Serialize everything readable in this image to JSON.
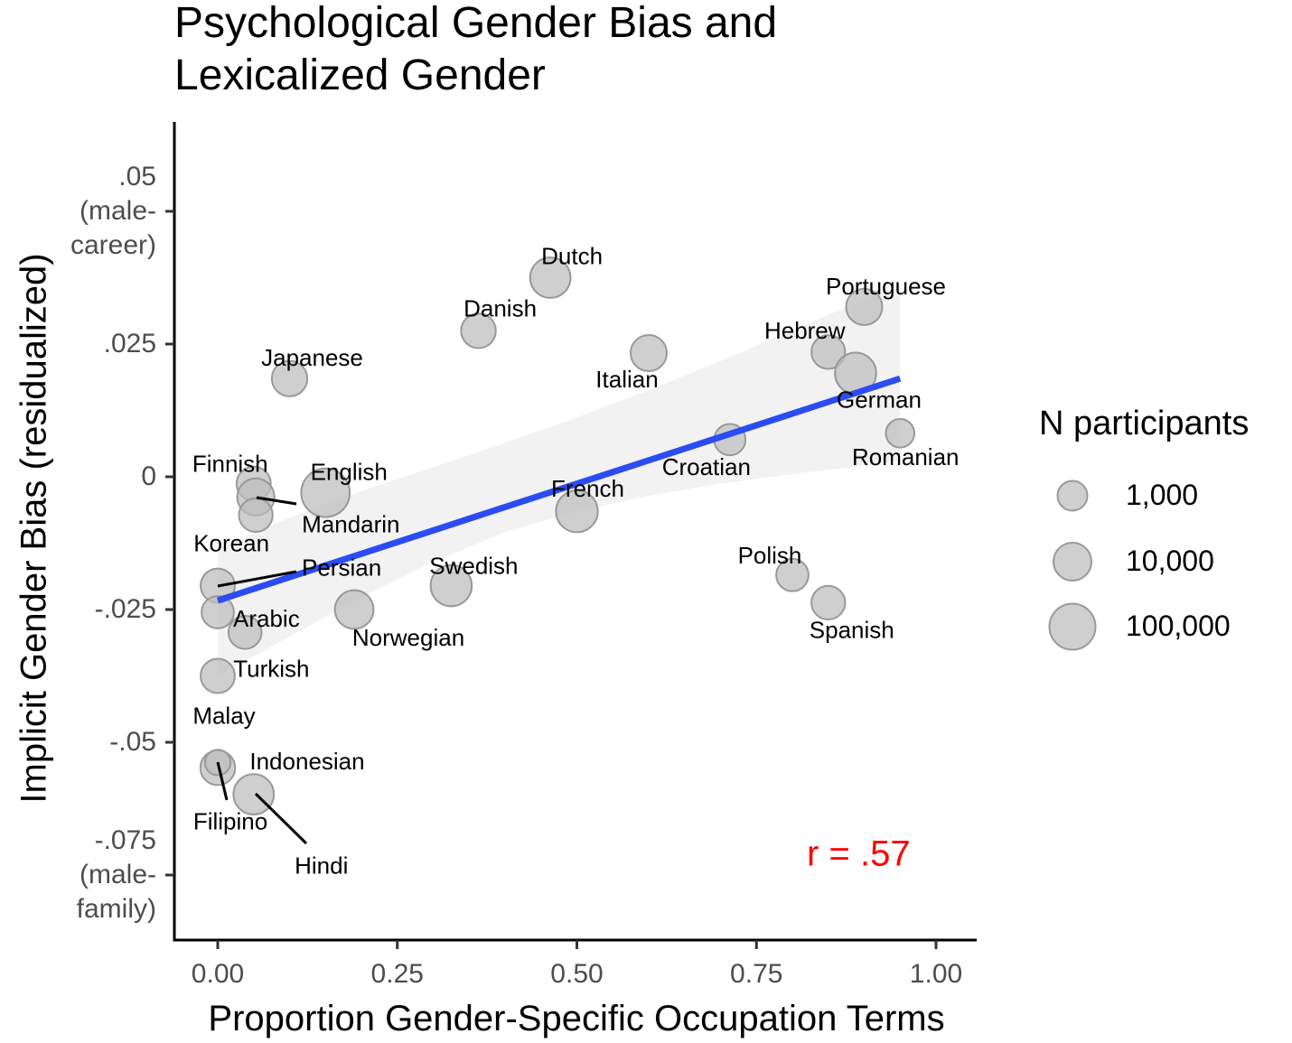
{
  "chart_data": {
    "type": "scatter",
    "title": "Psychological Gender Bias and Lexicalized Gender",
    "title_lines": [
      "Psychological Gender Bias and",
      "Lexicalized Gender"
    ],
    "xlabel": "Proportion Gender-Specific Occupation Terms",
    "ylabel": "Implicit Gender Bias (residualized)",
    "xlim": [
      -0.0125,
      1.0
    ],
    "ylim": [
      -0.0845,
      0.066
    ],
    "x_ticks": [
      {
        "value": 0.0,
        "label": "0.00"
      },
      {
        "value": 0.25,
        "label": "0.25"
      },
      {
        "value": 0.5,
        "label": "0.50"
      },
      {
        "value": 0.75,
        "label": "0.75"
      },
      {
        "value": 1.0,
        "label": "1.00"
      }
    ],
    "y_ticks": [
      {
        "value": 0.05,
        "label_lines": [
          ".05",
          "(male-",
          "career)"
        ]
      },
      {
        "value": 0.025,
        "label_lines": [
          ".025"
        ]
      },
      {
        "value": 0.0,
        "label_lines": [
          "0"
        ]
      },
      {
        "value": -0.025,
        "label_lines": [
          "-.025"
        ]
      },
      {
        "value": -0.05,
        "label_lines": [
          "-.05"
        ]
      },
      {
        "value": -0.075,
        "label_lines": [
          "-.075",
          "(male-",
          "family)"
        ]
      }
    ],
    "points": [
      {
        "label": "Dutch",
        "x": 0.463,
        "y": 0.0375,
        "n": 20000
      },
      {
        "label": "Danish",
        "x": 0.363,
        "y": 0.0275,
        "n": 4000
      },
      {
        "label": "Portuguese",
        "x": 0.9,
        "y": 0.032,
        "n": 6000
      },
      {
        "label": "Hebrew",
        "x": 0.85,
        "y": 0.0235,
        "n": 3000
      },
      {
        "label": "Italian",
        "x": 0.6,
        "y": 0.0233,
        "n": 6000
      },
      {
        "label": "German",
        "x": 0.888,
        "y": 0.0195,
        "n": 25000
      },
      {
        "label": "Japanese",
        "x": 0.1,
        "y": 0.0185,
        "n": 5000
      },
      {
        "label": "Romanian",
        "x": 0.95,
        "y": 0.0082,
        "n": 700
      },
      {
        "label": "Croatian",
        "x": 0.713,
        "y": 0.007,
        "n": 1500
      },
      {
        "label": "Finnish",
        "x": 0.05,
        "y": -0.0013,
        "n": 3500
      },
      {
        "label": "English",
        "x": 0.15,
        "y": -0.003,
        "n": 200000
      },
      {
        "label": "Mandarin",
        "x": 0.053,
        "y": -0.0038,
        "n": 8000
      },
      {
        "label": "Korean",
        "x": 0.053,
        "y": -0.0072,
        "n": 3000
      },
      {
        "label": "French",
        "x": 0.5,
        "y": -0.0065,
        "n": 30000
      },
      {
        "label": "Persian",
        "x": 0.0,
        "y": -0.0205,
        "n": 3500
      },
      {
        "label": "Swedish",
        "x": 0.325,
        "y": -0.0205,
        "n": 25000
      },
      {
        "label": "Polish",
        "x": 0.8,
        "y": -0.0185,
        "n": 2000
      },
      {
        "label": "Arabic",
        "x": 0.0,
        "y": -0.0255,
        "n": 2000
      },
      {
        "label": "Norwegian",
        "x": 0.19,
        "y": -0.025,
        "n": 12000
      },
      {
        "label": "Spanish",
        "x": 0.85,
        "y": -0.0237,
        "n": 3000
      },
      {
        "label": "Turkish",
        "x": 0.038,
        "y": -0.0293,
        "n": 2500
      },
      {
        "label": "Malay",
        "x": 0.0,
        "y": -0.0375,
        "n": 3500
      },
      {
        "label": "Indonesian",
        "x": 0.0,
        "y": -0.0548,
        "n": 4000
      },
      {
        "label": "Filipino",
        "x": 0.0,
        "y": -0.0538,
        "n": 300
      },
      {
        "label": "Hindi",
        "x": 0.05,
        "y": -0.0598,
        "n": 20000
      }
    ],
    "trend_line": {
      "x": [
        0.0,
        0.95
      ],
      "y": [
        -0.0233,
        0.0185
      ],
      "color": "#2a4cf2"
    },
    "confidence_band": {
      "x": [
        0.0,
        0.1,
        0.2,
        0.3,
        0.4,
        0.5,
        0.6,
        0.7,
        0.8,
        0.9,
        0.95
      ],
      "upper": [
        -0.0135,
        -0.0077,
        -0.0027,
        0.0018,
        0.0064,
        0.0112,
        0.0163,
        0.0218,
        0.0276,
        0.0334,
        0.0362
      ],
      "lower": [
        -0.0375,
        -0.0301,
        -0.0227,
        -0.016,
        -0.0104,
        -0.0065,
        -0.0036,
        -0.0013,
        0.0005,
        0.0021,
        0.003
      ],
      "color": "#f2f2f2"
    },
    "annotation": {
      "text": "r = .57",
      "x": 0.79,
      "y": -0.0705,
      "color": "#ff0000"
    },
    "legend": {
      "title": "N participants",
      "position": "right",
      "entries": [
        {
          "label": "1,000",
          "n": 1000
        },
        {
          "label": "10,000",
          "n": 10000
        },
        {
          "label": "100,000",
          "n": 100000
        }
      ]
    },
    "grid": false,
    "point_color": "#bdbdbd",
    "point_stroke": "#999999"
  }
}
